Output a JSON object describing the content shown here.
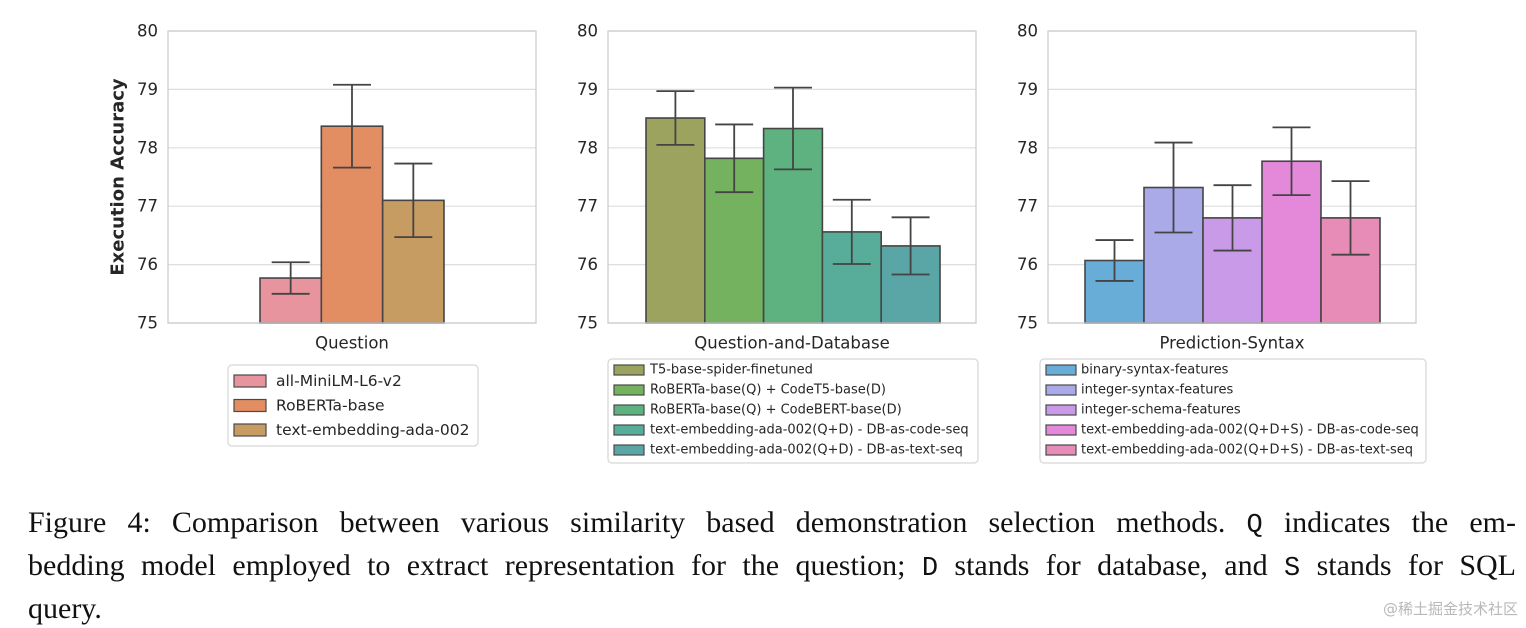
{
  "chart_data": [
    {
      "type": "bar",
      "categories": [
        "Question"
      ],
      "ylabel": "Execution Accuracy",
      "ylim": [
        75,
        80
      ],
      "yticks": [
        75,
        76,
        77,
        78,
        79,
        80
      ],
      "grid": true,
      "legend": "below",
      "series": [
        {
          "name": "all-MiniLM-L6-v2",
          "values": [
            75.77
          ],
          "error": [
            0.27
          ],
          "color": "#e8949e"
        },
        {
          "name": "RoBERTa-base",
          "values": [
            78.37
          ],
          "error": [
            0.71
          ],
          "color": "#e28d62"
        },
        {
          "name": "text-embedding-ada-002",
          "values": [
            77.1
          ],
          "error": [
            0.63
          ],
          "color": "#c69c62"
        }
      ]
    },
    {
      "type": "bar",
      "categories": [
        "Question-and-Database"
      ],
      "ylim": [
        75,
        80
      ],
      "yticks": [
        75,
        76,
        77,
        78,
        79,
        80
      ],
      "grid": true,
      "legend": "below",
      "series": [
        {
          "name": "T5-base-spider-finetuned",
          "values": [
            78.51
          ],
          "error": [
            0.46
          ],
          "color": "#9ca35e"
        },
        {
          "name": "RoBERTa-base(Q) + CodeT5-base(D)",
          "values": [
            77.82
          ],
          "error": [
            0.58
          ],
          "color": "#74b260"
        },
        {
          "name": "RoBERTa-base(Q) + CodeBERT-base(D)",
          "values": [
            78.33
          ],
          "error": [
            0.7
          ],
          "color": "#5db27f"
        },
        {
          "name": "text-embedding-ada-002(Q+D) - DB-as-code-seq",
          "values": [
            76.56
          ],
          "error": [
            0.55
          ],
          "color": "#58ad9a"
        },
        {
          "name": "text-embedding-ada-002(Q+D) - DB-as-text-seq",
          "values": [
            76.32
          ],
          "error": [
            0.49
          ],
          "color": "#5aa5a6"
        }
      ]
    },
    {
      "type": "bar",
      "categories": [
        "Prediction-Syntax"
      ],
      "ylim": [
        75,
        80
      ],
      "yticks": [
        75,
        76,
        77,
        78,
        79,
        80
      ],
      "grid": true,
      "legend": "below",
      "series": [
        {
          "name": "binary-syntax-features",
          "values": [
            76.07
          ],
          "error": [
            0.35
          ],
          "color": "#68acd8"
        },
        {
          "name": "integer-syntax-features",
          "values": [
            77.32
          ],
          "error": [
            0.77
          ],
          "color": "#aaaae8"
        },
        {
          "name": "integer-schema-features",
          "values": [
            76.8
          ],
          "error": [
            0.56
          ],
          "color": "#c99ae8"
        },
        {
          "name": "text-embedding-ada-002(Q+D+S) - DB-as-code-seq",
          "values": [
            77.77
          ],
          "error": [
            0.58
          ],
          "color": "#e489da"
        },
        {
          "name": "text-embedding-ada-002(Q+D+S) - DB-as-text-seq",
          "values": [
            76.8
          ],
          "error": [
            0.63
          ],
          "color": "#e68cb6"
        }
      ]
    }
  ],
  "caption": {
    "line1": {
      "a": "Figure 4: Comparison between various similarity based demonstration selection methods. ",
      "code": "Q",
      "b": " indicates the em-"
    },
    "line2": {
      "a": "bedding model employed to extract representation for the question; ",
      "code1": "D",
      "b": " stands for database, and ",
      "code2": "S",
      "c": " stands for SQL"
    },
    "line3": {
      "a": "query."
    }
  },
  "watermark": "@稀土掘金技术社区"
}
